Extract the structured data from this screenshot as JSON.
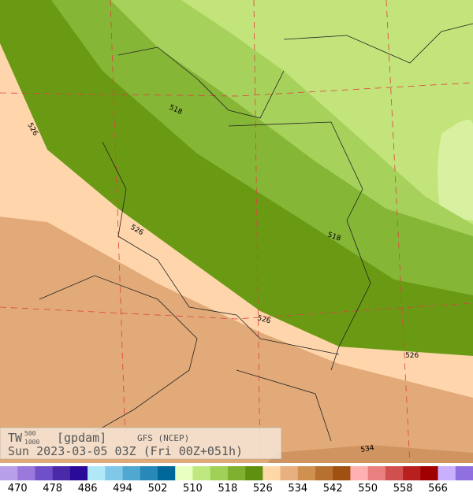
{
  "header": {
    "field": "TW",
    "level_top": "500",
    "level_bottom": "1000",
    "unit": "[gpdam]",
    "model": "GFS (NCEP)",
    "valid": "Sun 2023-03-05 03Z (Fri 00Z+051h)"
  },
  "contour_labels": [
    "518",
    "518",
    "526",
    "526",
    "526",
    "526",
    "534"
  ],
  "colorbar": {
    "labels": [
      470,
      478,
      486,
      494,
      502,
      510,
      518,
      526,
      534,
      542,
      550,
      558,
      566
    ],
    "colors": [
      "#b8a0e8",
      "#9a78dc",
      "#7050c8",
      "#4a2aa8",
      "#2a0a98",
      "#b0e8f8",
      "#80c8e8",
      "#50a8d0",
      "#2888b8",
      "#006898",
      "#e8ffc0",
      "#c0e880",
      "#a0d058",
      "#80b030",
      "#609010",
      "#ffd8a8",
      "#e8b080",
      "#d09050",
      "#b87030",
      "#a05010",
      "#ffb0b0",
      "#e88080",
      "#d05050",
      "#b82020",
      "#a00000",
      "#c8b0ff",
      "#9070e0"
    ]
  }
}
